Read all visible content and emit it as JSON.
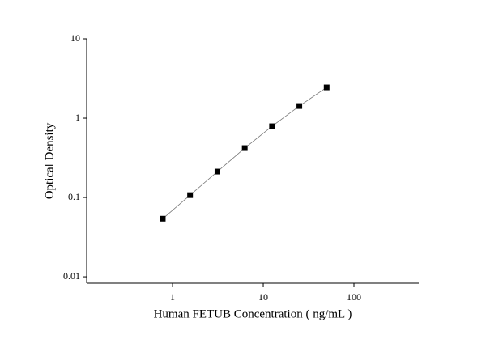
{
  "chart_data": {
    "type": "scatter",
    "x_label": "Human FETUB Concentration ( ng/mL )",
    "y_label": "Optical Density",
    "x": [
      0.78,
      1.56,
      3.125,
      6.25,
      12.5,
      25,
      50
    ],
    "values": [
      0.054,
      0.107,
      0.212,
      0.419,
      0.79,
      1.42,
      2.44
    ],
    "color": "#000000",
    "line_color": "#777777",
    "xlog": true,
    "ylog": true,
    "xlim": [
      0.113,
      518
    ],
    "xticks": [
      1,
      10,
      100
    ],
    "ylim": [
      0.0083,
      10
    ],
    "yticks": [
      0.01,
      0.1,
      1,
      10
    ]
  }
}
